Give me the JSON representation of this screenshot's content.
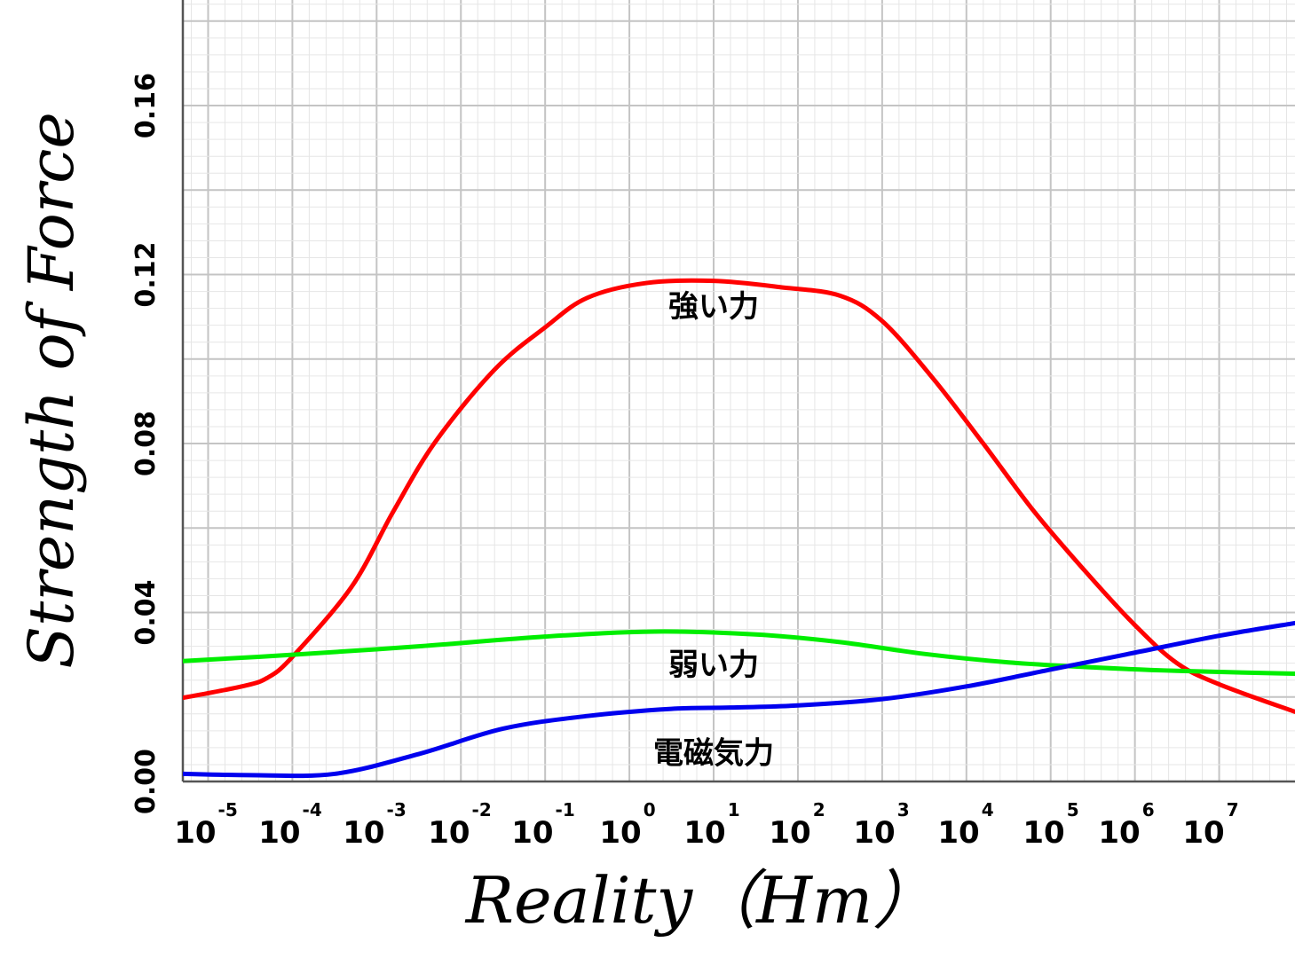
{
  "chart_data": {
    "type": "line",
    "title": "",
    "xlabel": "Reality（Hm）",
    "ylabel": "Strength of Force",
    "x_tick_labels": [
      {
        "base": "10",
        "exp": "-5"
      },
      {
        "base": "10",
        "exp": "-4"
      },
      {
        "base": "10",
        "exp": "-3"
      },
      {
        "base": "10",
        "exp": "-2"
      },
      {
        "base": "10",
        "exp": "-1"
      },
      {
        "base": "10",
        "exp": "0"
      },
      {
        "base": "10",
        "exp": "1"
      },
      {
        "base": "10",
        "exp": "2"
      },
      {
        "base": "10",
        "exp": "3"
      },
      {
        "base": "10",
        "exp": "4"
      },
      {
        "base": "10",
        "exp": "5"
      },
      {
        "base": "10",
        "exp": "6"
      },
      {
        "base": "10",
        "exp": "7"
      }
    ],
    "x_scale": "log",
    "xlim": [
      -5.3,
      7.9
    ],
    "y_tick_labels": [
      "0.00",
      "0.04",
      "0.08",
      "0.12",
      "0.16"
    ],
    "ylim": [
      0.0,
      0.185
    ],
    "grid": true,
    "legend": "none",
    "series": [
      {
        "name": "強い力",
        "color": "#ff0000",
        "x": [
          -5.3,
          -4.6,
          -4.3,
          -4.0,
          -3.3,
          -2.8,
          -2.3,
          -1.6,
          -1.0,
          -0.5,
          0.2,
          1.0,
          1.8,
          2.5,
          3.0,
          3.6,
          4.2,
          4.8,
          5.4,
          6.0,
          6.5,
          7.0,
          7.9
        ],
        "y": [
          0.0198,
          0.0225,
          0.0245,
          0.0295,
          0.046,
          0.064,
          0.0805,
          0.0975,
          0.1075,
          0.1145,
          0.118,
          0.1185,
          0.117,
          0.115,
          0.109,
          0.0955,
          0.08,
          0.064,
          0.05,
          0.037,
          0.028,
          0.023,
          0.0165
        ]
      },
      {
        "name": "弱い力",
        "color": "#00ee00",
        "x": [
          -5.3,
          -4.0,
          -2.5,
          -1.0,
          0.3,
          1.5,
          2.5,
          3.5,
          4.5,
          5.5,
          6.5,
          7.9
        ],
        "y": [
          0.0285,
          0.03,
          0.032,
          0.0343,
          0.0355,
          0.0348,
          0.033,
          0.0302,
          0.0282,
          0.027,
          0.0262,
          0.0255
        ]
      },
      {
        "name": "電磁気力",
        "color": "#0000ee",
        "x": [
          -5.3,
          -4.5,
          -3.5,
          -2.5,
          -1.5,
          -0.5,
          0.5,
          1.2,
          2.0,
          3.0,
          4.0,
          5.0,
          6.0,
          7.0,
          7.9
        ],
        "y": [
          0.0018,
          0.0015,
          0.0018,
          0.0065,
          0.0125,
          0.0155,
          0.0172,
          0.0175,
          0.018,
          0.0195,
          0.0225,
          0.0265,
          0.0305,
          0.0345,
          0.0375
        ]
      }
    ],
    "series_label_positions": [
      {
        "x": 1.0,
        "y": 0.112
      },
      {
        "x": 1.0,
        "y": 0.0272
      },
      {
        "x": 1.0,
        "y": 0.0063
      }
    ]
  }
}
